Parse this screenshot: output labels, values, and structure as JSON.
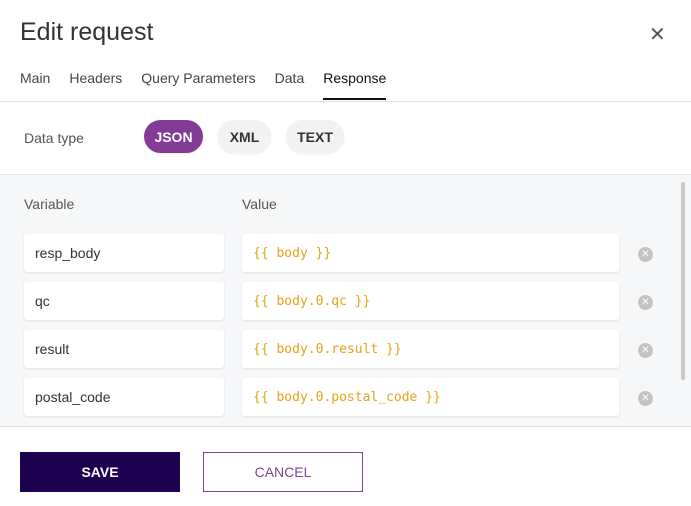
{
  "dialog": {
    "title": "Edit request",
    "close_icon": "close-icon"
  },
  "tabs": [
    {
      "label": "Main"
    },
    {
      "label": "Headers"
    },
    {
      "label": "Query Parameters"
    },
    {
      "label": "Data"
    },
    {
      "label": "Response",
      "active": true
    }
  ],
  "data_type": {
    "label": "Data type",
    "options": [
      "JSON",
      "XML",
      "TEXT"
    ],
    "selected": "JSON"
  },
  "table": {
    "headers": {
      "variable": "Variable",
      "value": "Value"
    },
    "rows": [
      {
        "variable": "resp_body",
        "value": "{{ body }}"
      },
      {
        "variable": "qc",
        "value": "{{ body.0.qc }}"
      },
      {
        "variable": "result",
        "value": "{{ body.0.result }}"
      },
      {
        "variable": "postal_code",
        "value": "{{ body.0.postal_code }}"
      }
    ]
  },
  "footer": {
    "save": "SAVE",
    "cancel": "CANCEL"
  },
  "colors": {
    "accent": "#843b95",
    "primary_button": "#1e0050",
    "value_text": "#e8a317"
  }
}
